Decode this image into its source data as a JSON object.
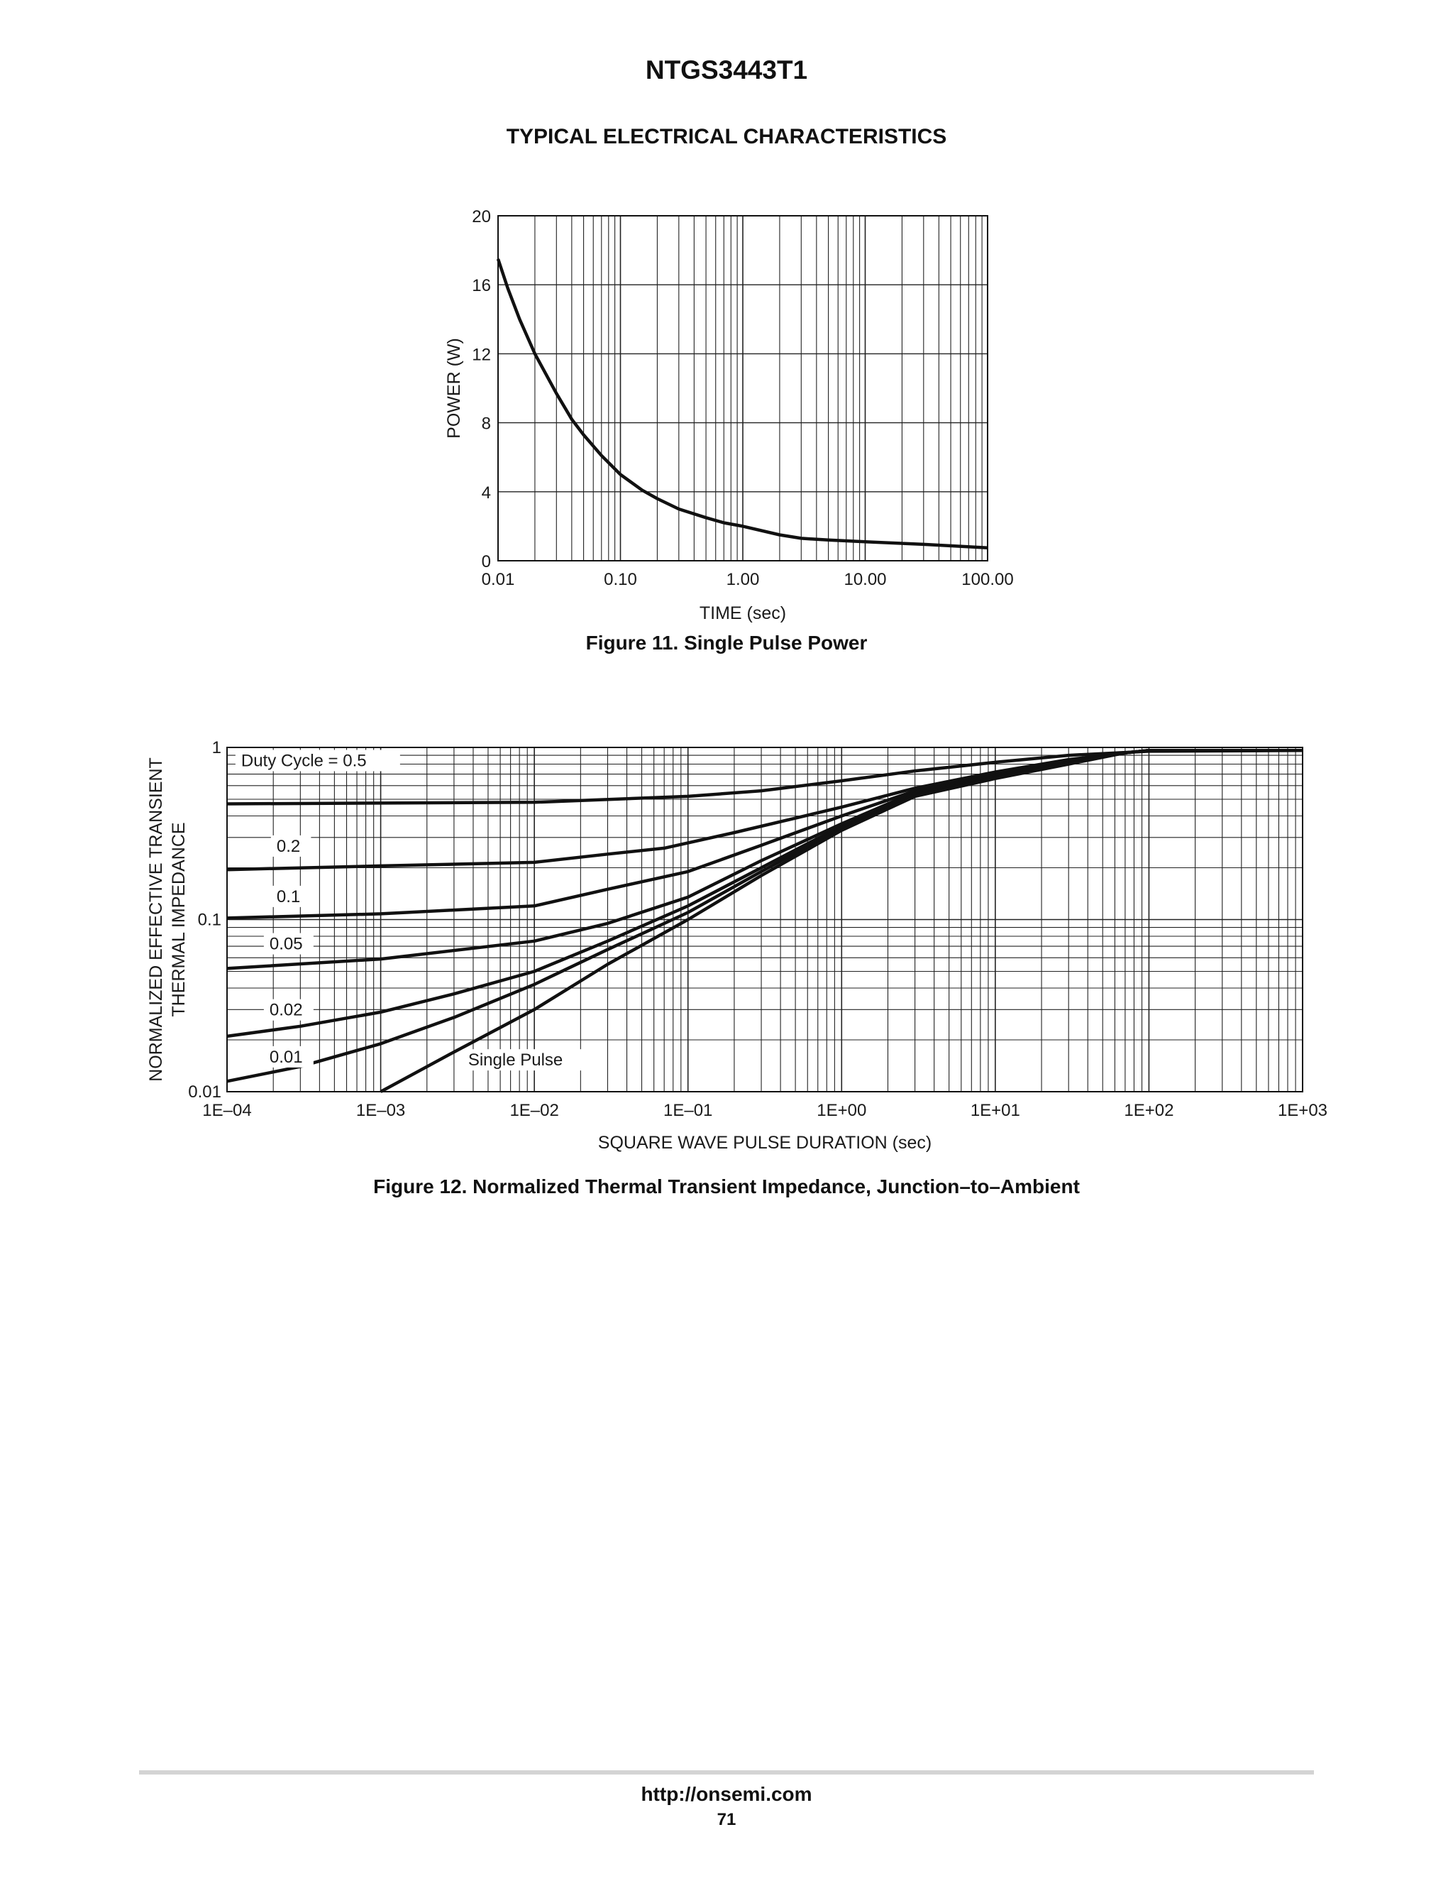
{
  "document": {
    "header": "NTGS3443T1",
    "section_title": "TYPICAL ELECTRICAL CHARACTERISTICS",
    "footer_url": "http://onsemi.com",
    "footer_page": "71"
  },
  "chart_data": [
    {
      "id": "fig11",
      "type": "line",
      "caption": "Figure 11. Single Pulse Power",
      "xlabel": "TIME (sec)",
      "ylabel": "POWER (W)",
      "xscale": "log",
      "xlim": [
        0.01,
        100
      ],
      "ylim": [
        0,
        20
      ],
      "grid": true,
      "x_tick_labels": [
        "0.01",
        "0.10",
        "1.00",
        "10.00",
        "100.00"
      ],
      "y_tick_labels": [
        "0",
        "4",
        "8",
        "12",
        "16",
        "20"
      ],
      "series": [
        {
          "name": "Single Pulse Power",
          "points": [
            [
              0.01,
              17.5
            ],
            [
              0.012,
              15.8
            ],
            [
              0.015,
              14.0
            ],
            [
              0.02,
              12.0
            ],
            [
              0.03,
              9.7
            ],
            [
              0.04,
              8.2
            ],
            [
              0.05,
              7.3
            ],
            [
              0.07,
              6.1
            ],
            [
              0.1,
              5.0
            ],
            [
              0.15,
              4.1
            ],
            [
              0.2,
              3.6
            ],
            [
              0.3,
              3.0
            ],
            [
              0.5,
              2.5
            ],
            [
              0.7,
              2.2
            ],
            [
              1.0,
              2.0
            ],
            [
              2.0,
              1.5
            ],
            [
              3.0,
              1.3
            ],
            [
              5.0,
              1.2
            ],
            [
              10.0,
              1.1
            ],
            [
              30.0,
              0.95
            ],
            [
              100.0,
              0.75
            ]
          ]
        }
      ]
    },
    {
      "id": "fig12",
      "type": "line",
      "caption": "Figure 12. Normalized Thermal Transient Impedance, Junction–to–Ambient",
      "xlabel": "SQUARE WAVE PULSE DURATION (sec)",
      "ylabel_line1": "NORMALIZED EFFECTIVE TRANSIENT",
      "ylabel_line2": "THERMAL IMPEDANCE",
      "xscale": "log",
      "yscale": "log",
      "xlim": [
        0.0001,
        1000
      ],
      "ylim": [
        0.01,
        1
      ],
      "grid": true,
      "x_tick_labels": [
        "1E–04",
        "1E–03",
        "1E–02",
        "1E–01",
        "1E+00",
        "1E+01",
        "1E+02",
        "1E+03"
      ],
      "y_tick_labels": [
        "0.01",
        "0.1",
        "1"
      ],
      "series": [
        {
          "name": "Duty Cycle = 0.5",
          "points": [
            [
              0.0001,
              0.47
            ],
            [
              0.001,
              0.475
            ],
            [
              0.01,
              0.48
            ],
            [
              0.1,
              0.52
            ],
            [
              0.3,
              0.56
            ],
            [
              1.0,
              0.64
            ],
            [
              3.0,
              0.73
            ],
            [
              10.0,
              0.82
            ],
            [
              30.0,
              0.9
            ],
            [
              100.0,
              0.95
            ],
            [
              1000.0,
              0.96
            ]
          ]
        },
        {
          "name": "0.2",
          "points": [
            [
              0.0001,
              0.195
            ],
            [
              0.001,
              0.205
            ],
            [
              0.01,
              0.215
            ],
            [
              0.03,
              0.24
            ],
            [
              0.07,
              0.26
            ],
            [
              0.2,
              0.32
            ],
            [
              1.0,
              0.45
            ],
            [
              3.0,
              0.58
            ],
            [
              10.0,
              0.72
            ],
            [
              30.0,
              0.85
            ],
            [
              70.0,
              0.93
            ],
            [
              100.0,
              0.96
            ],
            [
              1000.0,
              0.96
            ]
          ]
        },
        {
          "name": "0.1",
          "points": [
            [
              0.0001,
              0.102
            ],
            [
              0.001,
              0.108
            ],
            [
              0.01,
              0.12
            ],
            [
              0.03,
              0.15
            ],
            [
              0.1,
              0.19
            ],
            [
              0.3,
              0.27
            ],
            [
              1.0,
              0.4
            ],
            [
              3.0,
              0.56
            ],
            [
              10.0,
              0.7
            ],
            [
              30.0,
              0.84
            ],
            [
              70.0,
              0.93
            ],
            [
              100.0,
              0.96
            ],
            [
              1000.0,
              0.96
            ]
          ]
        },
        {
          "name": "0.05",
          "points": [
            [
              0.0001,
              0.052
            ],
            [
              0.001,
              0.059
            ],
            [
              0.01,
              0.075
            ],
            [
              0.03,
              0.095
            ],
            [
              0.1,
              0.135
            ],
            [
              0.3,
              0.22
            ],
            [
              1.0,
              0.36
            ],
            [
              3.0,
              0.55
            ],
            [
              10.0,
              0.69
            ],
            [
              30.0,
              0.83
            ],
            [
              70.0,
              0.93
            ],
            [
              100.0,
              0.96
            ],
            [
              1000.0,
              0.96
            ]
          ]
        },
        {
          "name": "0.02",
          "points": [
            [
              0.0001,
              0.021
            ],
            [
              0.0003,
              0.024
            ],
            [
              0.001,
              0.029
            ],
            [
              0.003,
              0.037
            ],
            [
              0.01,
              0.05
            ],
            [
              0.03,
              0.075
            ],
            [
              0.1,
              0.12
            ],
            [
              0.3,
              0.2
            ],
            [
              1.0,
              0.35
            ],
            [
              3.0,
              0.54
            ],
            [
              10.0,
              0.68
            ],
            [
              30.0,
              0.82
            ],
            [
              70.0,
              0.93
            ],
            [
              100.0,
              0.96
            ],
            [
              1000.0,
              0.96
            ]
          ]
        },
        {
          "name": "0.01",
          "points": [
            [
              0.0001,
              0.0115
            ],
            [
              0.0003,
              0.014
            ],
            [
              0.001,
              0.019
            ],
            [
              0.003,
              0.027
            ],
            [
              0.01,
              0.042
            ],
            [
              0.03,
              0.067
            ],
            [
              0.1,
              0.11
            ],
            [
              0.3,
              0.19
            ],
            [
              1.0,
              0.34
            ],
            [
              3.0,
              0.53
            ],
            [
              10.0,
              0.67
            ],
            [
              30.0,
              0.81
            ],
            [
              70.0,
              0.93
            ],
            [
              100.0,
              0.96
            ],
            [
              1000.0,
              0.96
            ]
          ]
        },
        {
          "name": "Single Pulse",
          "points": [
            [
              0.001,
              0.01
            ],
            [
              0.003,
              0.017
            ],
            [
              0.01,
              0.03
            ],
            [
              0.03,
              0.055
            ],
            [
              0.1,
              0.1
            ],
            [
              0.3,
              0.18
            ],
            [
              1.0,
              0.33
            ],
            [
              3.0,
              0.52
            ],
            [
              10.0,
              0.66
            ],
            [
              30.0,
              0.8
            ],
            [
              70.0,
              0.93
            ],
            [
              100.0,
              0.96
            ],
            [
              1000.0,
              0.96
            ]
          ]
        }
      ]
    }
  ]
}
